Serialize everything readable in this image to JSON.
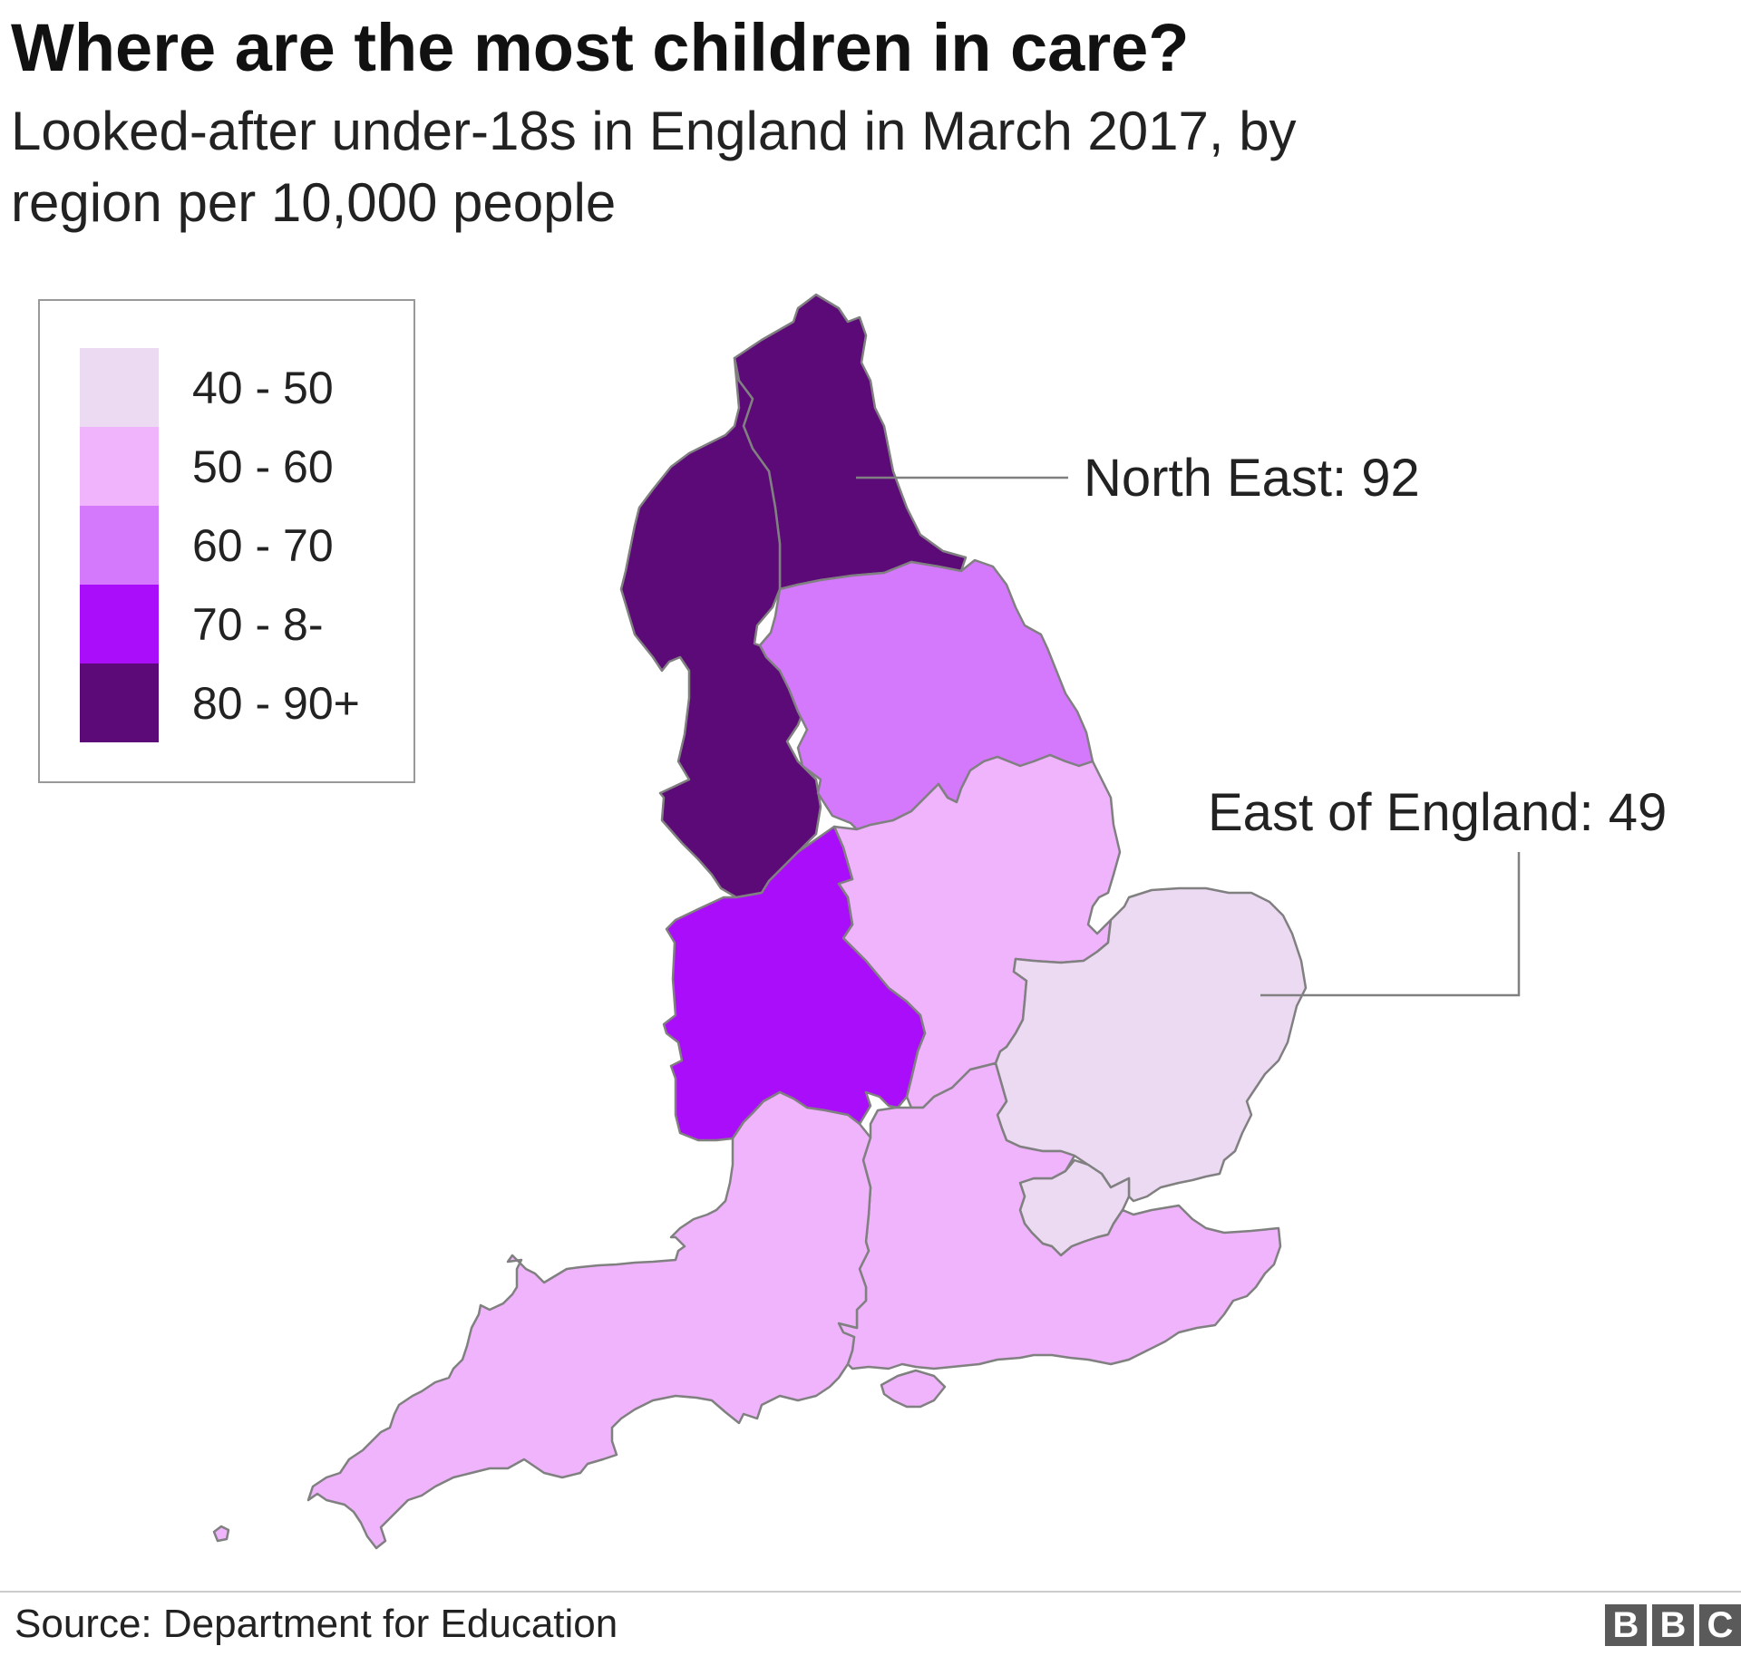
{
  "title": "Where are the most children in care?",
  "subtitle": "Looked-after under-18s in England in March 2017, by region per 10,000 people",
  "legend": {
    "items": [
      {
        "label": "40 - 50",
        "color": "#ecdaf3"
      },
      {
        "label": "50 - 60",
        "color": "#efb4fc"
      },
      {
        "label": "60 - 70",
        "color": "#d478fc"
      },
      {
        "label": "70 - 8-",
        "color": "#a90df9"
      },
      {
        "label": "80 - 90+",
        "color": "#5c0a78"
      }
    ]
  },
  "callouts": {
    "north_east": "North East: 92",
    "east_of_england": "East of England: 49"
  },
  "source": "Source: Department for Education",
  "logo": {
    "letters": [
      "B",
      "B",
      "C"
    ]
  },
  "colors": {
    "border": "#808080",
    "leader": "#808080"
  },
  "chart_data": {
    "type": "choropleth",
    "regions": [
      {
        "name": "North East",
        "value": 92,
        "band": "80 - 90+"
      },
      {
        "name": "North West",
        "band": "80 - 90+"
      },
      {
        "name": "Yorkshire and The Humber",
        "band": "60 - 70"
      },
      {
        "name": "West Midlands",
        "band": "70 - 8-"
      },
      {
        "name": "East Midlands",
        "band": "50 - 60"
      },
      {
        "name": "East of England",
        "value": 49,
        "band": "40 - 50"
      },
      {
        "name": "London",
        "band": "40 - 50"
      },
      {
        "name": "South West",
        "band": "50 - 60"
      },
      {
        "name": "South East",
        "band": "50 - 60"
      }
    ]
  }
}
